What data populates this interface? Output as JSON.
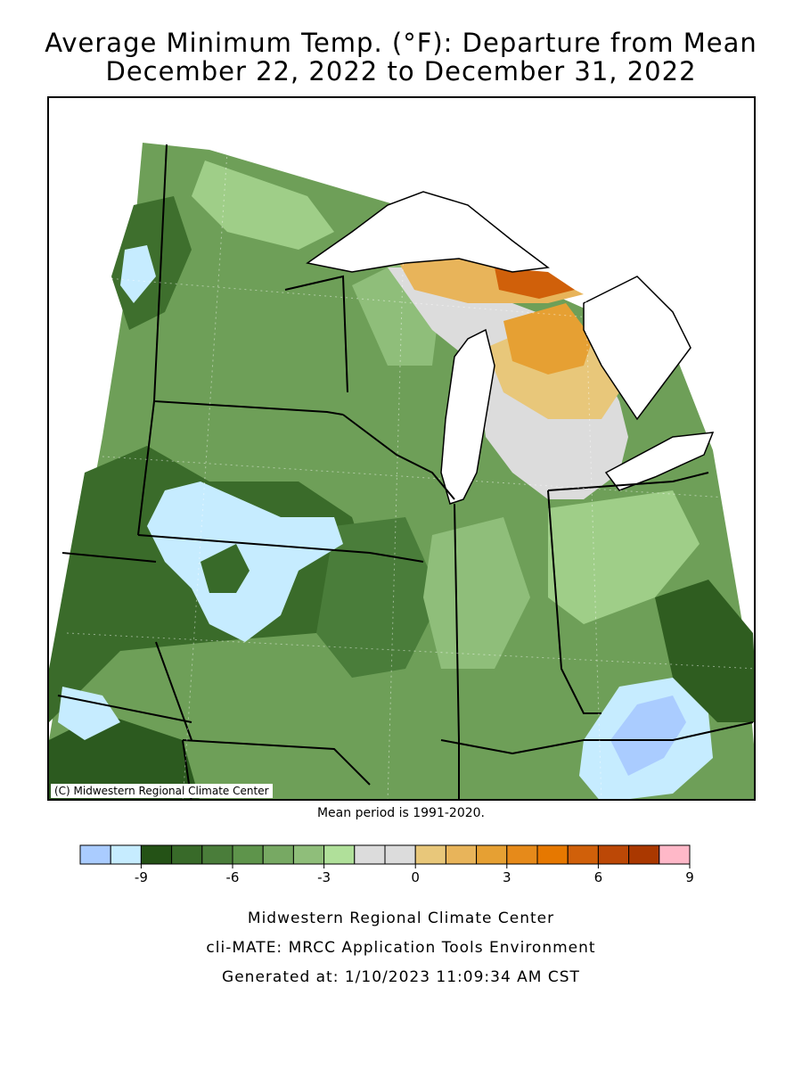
{
  "title": {
    "line1": "Average Minimum Temp. (°F): Departure from Mean",
    "line2": "December 22, 2022 to December 31, 2022"
  },
  "map": {
    "copyright": "(C) Midwestern Regional Climate Center"
  },
  "mean_period": "Mean period is 1991-2020.",
  "legend": {
    "colors": [
      "#aaccff",
      "#c6ecff",
      "#245216",
      "#386a29",
      "#4a7d3a",
      "#5e944b",
      "#77a963",
      "#8fbe7a",
      "#b0e09a",
      "#dcdcdc",
      "#dcdcdc",
      "#e8c77a",
      "#e8b45a",
      "#e6a033",
      "#e68a1a",
      "#e67800",
      "#d0600a",
      "#bc4806",
      "#aa3800",
      "#ffb8c8"
    ],
    "tick_labels": [
      "-9",
      "-6",
      "-3",
      "0",
      "3",
      "6",
      "9"
    ]
  },
  "footer": {
    "org": "Midwestern Regional Climate Center",
    "tool": "cli-MATE: MRCC Application Tools Environment",
    "generated": "Generated at: 1/10/2023 11:09:34 AM CST"
  }
}
